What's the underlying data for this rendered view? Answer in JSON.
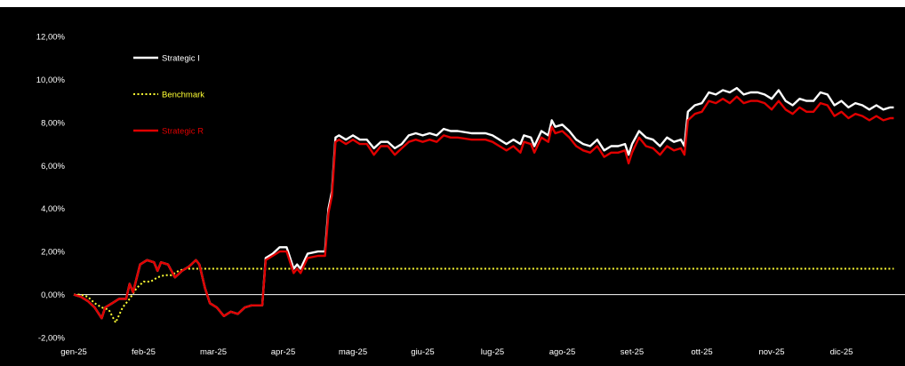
{
  "chart_data": {
    "type": "line",
    "title": "",
    "xlabel": "",
    "ylabel": "",
    "legend_position": "top-left",
    "grid": false,
    "ylim": [
      -2.0,
      12.0
    ],
    "yticks": [
      -2,
      0,
      2,
      4,
      6,
      8,
      10,
      12
    ],
    "ytick_labels": [
      "-2,00%",
      "0,00%",
      "2,00%",
      "4,00%",
      "6,00%",
      "8,00%",
      "10,00%",
      "12,00%"
    ],
    "x_months": [
      "gen-25",
      "feb-25",
      "mar-25",
      "apr-25",
      "mag-25",
      "giu-25",
      "lug-25",
      "ago-25",
      "set-25",
      "ott-25",
      "nov-25",
      "dic-25"
    ],
    "xlim": [
      0,
      11.75
    ],
    "series": [
      {
        "name": "Strategic I",
        "color": "#ffffff",
        "style": "solid",
        "points": [
          [
            0,
            0
          ],
          [
            0.1,
            -0.1
          ],
          [
            0.2,
            -0.3
          ],
          [
            0.3,
            -0.6
          ],
          [
            0.4,
            -1.1
          ],
          [
            0.45,
            -0.6
          ],
          [
            0.55,
            -0.4
          ],
          [
            0.65,
            -0.2
          ],
          [
            0.75,
            -0.2
          ],
          [
            0.8,
            0.5
          ],
          [
            0.85,
            0.1
          ],
          [
            0.95,
            1.4
          ],
          [
            1.05,
            1.6
          ],
          [
            1.15,
            1.5
          ],
          [
            1.2,
            1.1
          ],
          [
            1.25,
            1.5
          ],
          [
            1.35,
            1.4
          ],
          [
            1.45,
            0.8
          ],
          [
            1.55,
            1.1
          ],
          [
            1.65,
            1.3
          ],
          [
            1.75,
            1.6
          ],
          [
            1.8,
            1.4
          ],
          [
            1.88,
            0.3
          ],
          [
            1.95,
            -0.4
          ],
          [
            2.05,
            -0.6
          ],
          [
            2.15,
            -1.0
          ],
          [
            2.25,
            -0.8
          ],
          [
            2.35,
            -0.9
          ],
          [
            2.45,
            -0.6
          ],
          [
            2.55,
            -0.5
          ],
          [
            2.7,
            -0.5
          ],
          [
            2.75,
            1.7
          ],
          [
            2.85,
            1.9
          ],
          [
            2.95,
            2.2
          ],
          [
            3.05,
            2.2
          ],
          [
            3.15,
            1.2
          ],
          [
            3.2,
            1.4
          ],
          [
            3.25,
            1.2
          ],
          [
            3.35,
            1.9
          ],
          [
            3.5,
            2.0
          ],
          [
            3.6,
            2.0
          ],
          [
            3.65,
            4.0
          ],
          [
            3.7,
            4.8
          ],
          [
            3.75,
            7.3
          ],
          [
            3.8,
            7.4
          ],
          [
            3.9,
            7.2
          ],
          [
            4.0,
            7.4
          ],
          [
            4.1,
            7.2
          ],
          [
            4.2,
            7.2
          ],
          [
            4.3,
            6.8
          ],
          [
            4.4,
            7.1
          ],
          [
            4.5,
            7.1
          ],
          [
            4.6,
            6.8
          ],
          [
            4.7,
            7.0
          ],
          [
            4.8,
            7.4
          ],
          [
            4.9,
            7.5
          ],
          [
            5.0,
            7.4
          ],
          [
            5.1,
            7.5
          ],
          [
            5.2,
            7.4
          ],
          [
            5.3,
            7.7
          ],
          [
            5.4,
            7.6
          ],
          [
            5.5,
            7.6
          ],
          [
            5.7,
            7.5
          ],
          [
            5.9,
            7.5
          ],
          [
            6.0,
            7.4
          ],
          [
            6.1,
            7.2
          ],
          [
            6.2,
            7.0
          ],
          [
            6.3,
            7.2
          ],
          [
            6.4,
            7.0
          ],
          [
            6.45,
            7.4
          ],
          [
            6.55,
            7.3
          ],
          [
            6.6,
            6.9
          ],
          [
            6.7,
            7.6
          ],
          [
            6.8,
            7.4
          ],
          [
            6.85,
            8.1
          ],
          [
            6.9,
            7.8
          ],
          [
            7.0,
            7.9
          ],
          [
            7.1,
            7.6
          ],
          [
            7.2,
            7.2
          ],
          [
            7.3,
            7.0
          ],
          [
            7.4,
            6.9
          ],
          [
            7.5,
            7.2
          ],
          [
            7.6,
            6.7
          ],
          [
            7.7,
            6.9
          ],
          [
            7.8,
            6.9
          ],
          [
            7.9,
            7.0
          ],
          [
            7.95,
            6.5
          ],
          [
            8.0,
            7.0
          ],
          [
            8.1,
            7.6
          ],
          [
            8.2,
            7.3
          ],
          [
            8.3,
            7.2
          ],
          [
            8.4,
            6.9
          ],
          [
            8.5,
            7.3
          ],
          [
            8.6,
            7.1
          ],
          [
            8.7,
            7.2
          ],
          [
            8.75,
            6.9
          ],
          [
            8.8,
            8.5
          ],
          [
            8.9,
            8.8
          ],
          [
            9.0,
            8.9
          ],
          [
            9.1,
            9.4
          ],
          [
            9.2,
            9.3
          ],
          [
            9.3,
            9.5
          ],
          [
            9.4,
            9.4
          ],
          [
            9.5,
            9.6
          ],
          [
            9.6,
            9.3
          ],
          [
            9.7,
            9.4
          ],
          [
            9.8,
            9.4
          ],
          [
            9.9,
            9.3
          ],
          [
            10.0,
            9.1
          ],
          [
            10.1,
            9.5
          ],
          [
            10.2,
            9.0
          ],
          [
            10.3,
            8.8
          ],
          [
            10.4,
            9.1
          ],
          [
            10.5,
            9.0
          ],
          [
            10.6,
            9.0
          ],
          [
            10.7,
            9.4
          ],
          [
            10.8,
            9.3
          ],
          [
            10.9,
            8.8
          ],
          [
            11.0,
            9.0
          ],
          [
            11.1,
            8.7
          ],
          [
            11.2,
            8.9
          ],
          [
            11.3,
            8.8
          ],
          [
            11.4,
            8.6
          ],
          [
            11.5,
            8.8
          ],
          [
            11.6,
            8.6
          ],
          [
            11.7,
            8.7
          ],
          [
            11.75,
            8.7
          ]
        ]
      },
      {
        "name": "Benchmark",
        "color": "#ffff33",
        "style": "dotted",
        "points": [
          [
            0,
            0
          ],
          [
            0.1,
            0.0
          ],
          [
            0.2,
            -0.1
          ],
          [
            0.3,
            -0.4
          ],
          [
            0.4,
            -0.6
          ],
          [
            0.5,
            -0.7
          ],
          [
            0.6,
            -1.3
          ],
          [
            0.7,
            -0.6
          ],
          [
            0.8,
            -0.2
          ],
          [
            0.9,
            0.3
          ],
          [
            1.0,
            0.6
          ],
          [
            1.1,
            0.6
          ],
          [
            1.2,
            0.8
          ],
          [
            1.3,
            0.9
          ],
          [
            1.4,
            0.9
          ],
          [
            1.5,
            1.1
          ],
          [
            1.6,
            1.2
          ],
          [
            11.75,
            1.2
          ]
        ]
      },
      {
        "name": "Strategic R",
        "color": "#e00000",
        "style": "solid",
        "points": [
          [
            0,
            0
          ],
          [
            0.1,
            -0.1
          ],
          [
            0.2,
            -0.3
          ],
          [
            0.3,
            -0.6
          ],
          [
            0.4,
            -1.1
          ],
          [
            0.45,
            -0.6
          ],
          [
            0.55,
            -0.4
          ],
          [
            0.65,
            -0.2
          ],
          [
            0.75,
            -0.2
          ],
          [
            0.8,
            0.5
          ],
          [
            0.85,
            0.1
          ],
          [
            0.95,
            1.4
          ],
          [
            1.05,
            1.6
          ],
          [
            1.15,
            1.5
          ],
          [
            1.2,
            1.1
          ],
          [
            1.25,
            1.5
          ],
          [
            1.35,
            1.4
          ],
          [
            1.45,
            0.8
          ],
          [
            1.55,
            1.1
          ],
          [
            1.65,
            1.3
          ],
          [
            1.75,
            1.6
          ],
          [
            1.8,
            1.4
          ],
          [
            1.88,
            0.3
          ],
          [
            1.95,
            -0.4
          ],
          [
            2.05,
            -0.6
          ],
          [
            2.15,
            -1.0
          ],
          [
            2.25,
            -0.8
          ],
          [
            2.35,
            -0.9
          ],
          [
            2.45,
            -0.6
          ],
          [
            2.55,
            -0.5
          ],
          [
            2.7,
            -0.5
          ],
          [
            2.75,
            1.6
          ],
          [
            2.85,
            1.8
          ],
          [
            2.95,
            2.0
          ],
          [
            3.05,
            2.0
          ],
          [
            3.15,
            1.0
          ],
          [
            3.2,
            1.2
          ],
          [
            3.25,
            1.0
          ],
          [
            3.35,
            1.7
          ],
          [
            3.5,
            1.8
          ],
          [
            3.6,
            1.8
          ],
          [
            3.65,
            3.8
          ],
          [
            3.7,
            4.6
          ],
          [
            3.75,
            7.1
          ],
          [
            3.8,
            7.2
          ],
          [
            3.9,
            7.0
          ],
          [
            4.0,
            7.2
          ],
          [
            4.1,
            7.0
          ],
          [
            4.2,
            7.0
          ],
          [
            4.3,
            6.5
          ],
          [
            4.4,
            6.9
          ],
          [
            4.5,
            6.9
          ],
          [
            4.6,
            6.5
          ],
          [
            4.7,
            6.8
          ],
          [
            4.8,
            7.1
          ],
          [
            4.9,
            7.2
          ],
          [
            5.0,
            7.1
          ],
          [
            5.1,
            7.2
          ],
          [
            5.2,
            7.1
          ],
          [
            5.3,
            7.4
          ],
          [
            5.4,
            7.3
          ],
          [
            5.5,
            7.3
          ],
          [
            5.7,
            7.2
          ],
          [
            5.9,
            7.2
          ],
          [
            6.0,
            7.1
          ],
          [
            6.1,
            6.9
          ],
          [
            6.2,
            6.7
          ],
          [
            6.3,
            6.9
          ],
          [
            6.4,
            6.6
          ],
          [
            6.45,
            7.1
          ],
          [
            6.55,
            7.0
          ],
          [
            6.6,
            6.6
          ],
          [
            6.7,
            7.3
          ],
          [
            6.8,
            7.1
          ],
          [
            6.85,
            7.8
          ],
          [
            6.9,
            7.5
          ],
          [
            7.0,
            7.6
          ],
          [
            7.1,
            7.3
          ],
          [
            7.2,
            6.9
          ],
          [
            7.3,
            6.7
          ],
          [
            7.4,
            6.6
          ],
          [
            7.5,
            6.9
          ],
          [
            7.6,
            6.4
          ],
          [
            7.7,
            6.6
          ],
          [
            7.8,
            6.6
          ],
          [
            7.9,
            6.7
          ],
          [
            7.95,
            6.1
          ],
          [
            8.0,
            6.6
          ],
          [
            8.1,
            7.3
          ],
          [
            8.2,
            6.9
          ],
          [
            8.3,
            6.8
          ],
          [
            8.4,
            6.5
          ],
          [
            8.5,
            6.9
          ],
          [
            8.6,
            6.7
          ],
          [
            8.7,
            6.8
          ],
          [
            8.75,
            6.5
          ],
          [
            8.8,
            8.1
          ],
          [
            8.9,
            8.4
          ],
          [
            9.0,
            8.5
          ],
          [
            9.1,
            9.0
          ],
          [
            9.2,
            8.9
          ],
          [
            9.3,
            9.1
          ],
          [
            9.4,
            8.9
          ],
          [
            9.5,
            9.2
          ],
          [
            9.6,
            8.9
          ],
          [
            9.7,
            9.0
          ],
          [
            9.8,
            9.0
          ],
          [
            9.9,
            8.9
          ],
          [
            10.0,
            8.6
          ],
          [
            10.1,
            9.0
          ],
          [
            10.2,
            8.6
          ],
          [
            10.3,
            8.4
          ],
          [
            10.4,
            8.7
          ],
          [
            10.5,
            8.5
          ],
          [
            10.6,
            8.5
          ],
          [
            10.7,
            8.9
          ],
          [
            10.8,
            8.8
          ],
          [
            10.9,
            8.3
          ],
          [
            11.0,
            8.5
          ],
          [
            11.1,
            8.2
          ],
          [
            11.2,
            8.4
          ],
          [
            11.3,
            8.3
          ],
          [
            11.4,
            8.1
          ],
          [
            11.5,
            8.3
          ],
          [
            11.6,
            8.1
          ],
          [
            11.7,
            8.2
          ],
          [
            11.75,
            8.2
          ]
        ]
      }
    ]
  }
}
